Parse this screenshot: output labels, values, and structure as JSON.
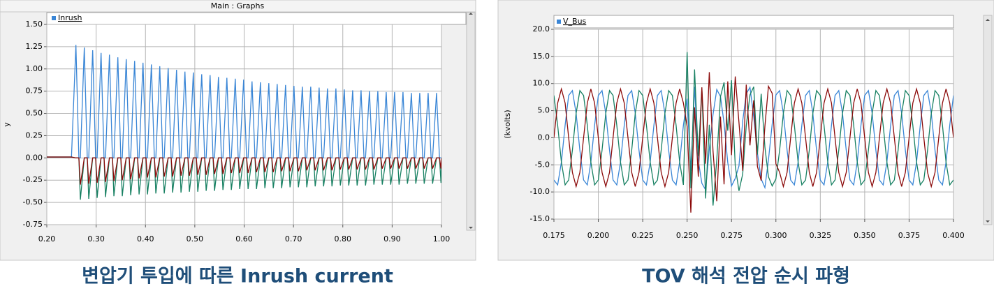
{
  "window_title": "Main : Graphs",
  "chart_data": [
    {
      "type": "line",
      "caption": "변압기 투입에 따른 Inrush current",
      "legend_label": "Inrush",
      "ylabel": "y",
      "grid": true,
      "xlim": [
        0.2,
        1.0
      ],
      "ylim": [
        -0.75,
        1.5
      ],
      "xticks": [
        {
          "value": 0.2,
          "label": "0.20"
        },
        {
          "value": 0.3,
          "label": "0.30"
        },
        {
          "value": 0.4,
          "label": "0.40"
        },
        {
          "value": 0.5,
          "label": "0.50"
        },
        {
          "value": 0.6,
          "label": "0.60"
        },
        {
          "value": 0.7,
          "label": "0.70"
        },
        {
          "value": 0.8,
          "label": "0.80"
        },
        {
          "value": 0.9,
          "label": "0.90"
        },
        {
          "value": 1.0,
          "label": "1.00"
        }
      ],
      "yticks": [
        -0.75,
        {
          "value": -0.5,
          "label": "-0.50"
        },
        -0.25,
        {
          "value": 0,
          "label": "0.00"
        },
        0.25,
        {
          "value": 0.5,
          "label": "0.50"
        },
        0.75,
        {
          "value": 1.0,
          "label": "1.00"
        },
        1.25,
        {
          "value": 1.5,
          "label": "1.50"
        }
      ],
      "x": [
        0.2,
        0.25,
        0.259,
        0.265,
        0.268,
        0.276,
        0.282,
        0.285,
        0.293,
        0.299,
        0.302,
        0.31,
        0.316,
        0.319,
        0.327,
        0.333,
        0.336,
        0.344,
        0.35,
        0.353,
        0.361,
        0.367,
        0.37,
        0.378,
        0.384,
        0.387,
        0.395,
        0.401,
        0.404,
        0.412,
        0.418,
        0.421,
        0.429,
        0.435,
        0.438,
        0.446,
        0.452,
        0.455,
        0.463,
        0.469,
        0.472,
        0.48,
        0.486,
        0.489,
        0.497,
        0.503,
        0.506,
        0.514,
        0.52,
        0.523,
        0.531,
        0.537,
        0.54,
        0.548,
        0.554,
        0.557,
        0.565,
        0.571,
        0.574,
        0.582,
        0.588,
        0.591,
        0.599,
        0.605,
        0.608,
        0.616,
        0.622,
        0.625,
        0.633,
        0.639,
        0.642,
        0.65,
        0.656,
        0.659,
        0.667,
        0.673,
        0.676,
        0.684,
        0.69,
        0.693,
        0.701,
        0.707,
        0.71,
        0.718,
        0.724,
        0.727,
        0.735,
        0.741,
        0.744,
        0.752,
        0.758,
        0.761,
        0.769,
        0.775,
        0.778,
        0.786,
        0.792,
        0.795,
        0.803,
        0.809,
        0.812,
        0.82,
        0.826,
        0.829,
        0.837,
        0.843,
        0.846,
        0.854,
        0.86,
        0.863,
        0.871,
        0.877,
        0.88,
        0.888,
        0.894,
        0.897,
        0.905,
        0.911,
        0.914,
        0.922,
        0.928,
        0.931,
        0.939,
        0.945,
        0.948,
        0.956,
        0.962,
        0.965,
        0.973,
        0.979,
        0.982,
        0.99,
        0.996,
        0.999,
        1.0
      ],
      "series": [
        {
          "color": "#3a86d6",
          "values": [
            0.01,
            0.01,
            1.27,
            0,
            0,
            1.24,
            0,
            0,
            1.21,
            0,
            0,
            1.18,
            0,
            0,
            1.16,
            0,
            0,
            1.13,
            0,
            0,
            1.11,
            0,
            0,
            1.09,
            0,
            0,
            1.07,
            0,
            0,
            1.05,
            0,
            0,
            1.03,
            0,
            0,
            1.01,
            0,
            0,
            0.99,
            0,
            0,
            0.97,
            0,
            0,
            0.96,
            0,
            0,
            0.94,
            0,
            0,
            0.93,
            0,
            0,
            0.91,
            0,
            0,
            0.9,
            0,
            0,
            0.89,
            0,
            0,
            0.88,
            0,
            0,
            0.86,
            0,
            0,
            0.85,
            0,
            0,
            0.84,
            0,
            0,
            0.83,
            0,
            0,
            0.82,
            0,
            0,
            0.81,
            0,
            0,
            0.8,
            0,
            0,
            0.8,
            0,
            0,
            0.79,
            0,
            0,
            0.78,
            0,
            0,
            0.78,
            0,
            0,
            0.77,
            0,
            0,
            0.76,
            0,
            0,
            0.76,
            0,
            0,
            0.75,
            0,
            0,
            0.75,
            0,
            0,
            0.74,
            0,
            0,
            0.74,
            0,
            0,
            0.74,
            0,
            0,
            0.73,
            0,
            0,
            0.73,
            0,
            0,
            0.73,
            0,
            0,
            0.73,
            0,
            0,
            0
          ]
        },
        {
          "color": "#178062",
          "values": [
            0.01,
            0.01,
            0,
            0,
            -0.47,
            0,
            0,
            -0.46,
            0,
            0,
            -0.45,
            0,
            0,
            -0.44,
            0,
            0,
            -0.43,
            0,
            0,
            -0.43,
            0,
            0,
            -0.42,
            0,
            0,
            -0.41,
            0,
            0,
            -0.41,
            0,
            0,
            -0.4,
            0,
            0,
            -0.4,
            0,
            0,
            -0.39,
            0,
            0,
            -0.39,
            0,
            0,
            -0.38,
            0,
            0,
            -0.38,
            0,
            0,
            -0.37,
            0,
            0,
            -0.37,
            0,
            0,
            -0.36,
            0,
            0,
            -0.36,
            0,
            0,
            -0.35,
            0,
            0,
            -0.35,
            0,
            0,
            -0.35,
            0,
            0,
            -0.34,
            0,
            0,
            -0.34,
            0,
            0,
            -0.34,
            0,
            0,
            -0.33,
            0,
            0,
            -0.33,
            0,
            0,
            -0.33,
            0,
            0,
            -0.32,
            0,
            0,
            -0.32,
            0,
            0,
            -0.32,
            0,
            0,
            -0.31,
            0,
            0,
            -0.31,
            0,
            0,
            -0.31,
            0,
            0,
            -0.31,
            0,
            0,
            -0.3,
            0,
            0,
            -0.3,
            0,
            0,
            -0.3,
            0,
            0,
            -0.3,
            0,
            0,
            -0.29,
            0,
            0,
            -0.29,
            0,
            0,
            -0.29,
            0,
            0,
            -0.29,
            0,
            0,
            -0.28,
            0
          ]
        },
        {
          "color": "#8b0a0a",
          "values": [
            0.01,
            0.01,
            0,
            0,
            -0.3,
            0,
            0,
            -0.29,
            0,
            0,
            -0.28,
            0,
            0,
            -0.27,
            0,
            0,
            -0.26,
            0,
            0,
            -0.25,
            0,
            0,
            -0.24,
            0,
            0,
            -0.23,
            0,
            0,
            -0.22,
            0,
            0,
            -0.22,
            0,
            0,
            -0.21,
            0,
            0,
            -0.21,
            0,
            0,
            -0.2,
            0,
            0,
            -0.2,
            0,
            0,
            -0.19,
            0,
            0,
            -0.19,
            0,
            0,
            -0.18,
            0,
            0,
            -0.18,
            0,
            0,
            -0.17,
            0,
            0,
            -0.17,
            0,
            0,
            -0.17,
            0,
            0,
            -0.16,
            0,
            0,
            -0.16,
            0,
            0,
            -0.16,
            0,
            0,
            -0.15,
            0,
            0,
            -0.15,
            0,
            0,
            -0.15,
            0,
            0,
            -0.14,
            0,
            0,
            -0.14,
            0,
            0,
            -0.14,
            0,
            0,
            -0.14,
            0,
            0,
            -0.13,
            0,
            0,
            -0.13,
            0,
            0,
            -0.13,
            0,
            0,
            -0.13,
            0,
            0,
            -0.13,
            0,
            0,
            -0.12,
            0,
            0,
            -0.12,
            0,
            0,
            -0.12,
            0,
            0,
            -0.12,
            0,
            0,
            -0.12,
            0,
            0,
            -0.12,
            0,
            0,
            -0.12,
            0,
            0,
            -0.12,
            0
          ]
        }
      ]
    },
    {
      "type": "line",
      "caption": "TOV 해석 전압 순시 파형",
      "legend_label": "V_Bus",
      "ylabel": "(kvolts)",
      "grid": true,
      "xlim": [
        0.175,
        0.4
      ],
      "ylim": [
        -15,
        20
      ],
      "xticks": [
        0.175,
        {
          "value": 0.2,
          "label": "0.200"
        },
        0.225,
        {
          "value": 0.25,
          "label": "0.250"
        },
        0.275,
        {
          "value": 0.3,
          "label": "0.300"
        },
        0.325,
        {
          "value": 0.35,
          "label": "0.350"
        },
        0.375,
        {
          "value": 0.4,
          "label": "0.400"
        }
      ],
      "yticks": [
        {
          "value": -15,
          "label": "-15.0"
        },
        {
          "value": -10,
          "label": "-10.0"
        },
        {
          "value": -5,
          "label": "-5.0"
        },
        {
          "value": 0,
          "label": "0.0"
        },
        {
          "value": 5,
          "label": "5.0"
        },
        {
          "value": 10,
          "label": "10.0"
        },
        {
          "value": 15,
          "label": "15.0"
        },
        {
          "value": 20,
          "label": "20.0"
        }
      ],
      "x": [
        0.175,
        0.1771,
        0.1792,
        0.1813,
        0.1833,
        0.1854,
        0.1875,
        0.1896,
        0.1917,
        0.1938,
        0.1958,
        0.1979,
        0.2,
        0.2021,
        0.2042,
        0.2063,
        0.2083,
        0.2104,
        0.2125,
        0.2146,
        0.2167,
        0.2188,
        0.2208,
        0.2229,
        0.225,
        0.2271,
        0.2292,
        0.2313,
        0.2333,
        0.2354,
        0.2375,
        0.2396,
        0.2417,
        0.2438,
        0.2458,
        0.2479,
        0.25,
        0.2521,
        0.2542,
        0.2563,
        0.2583,
        0.2604,
        0.2625,
        0.2646,
        0.2667,
        0.2688,
        0.2708,
        0.2729,
        0.275,
        0.2771,
        0.2792,
        0.2813,
        0.2833,
        0.2854,
        0.2875,
        0.2896,
        0.2917,
        0.2938,
        0.2958,
        0.2979,
        0.3,
        0.3021,
        0.3042,
        0.3063,
        0.3083,
        0.3104,
        0.3125,
        0.3146,
        0.3167,
        0.3188,
        0.3208,
        0.3229,
        0.325,
        0.3271,
        0.3292,
        0.3313,
        0.3333,
        0.3354,
        0.3375,
        0.3396,
        0.3417,
        0.3438,
        0.3458,
        0.3479,
        0.35,
        0.3521,
        0.3542,
        0.3563,
        0.3583,
        0.3604,
        0.3625,
        0.3646,
        0.3667,
        0.3688,
        0.3708,
        0.3729,
        0.375,
        0.3771,
        0.3792,
        0.3813,
        0.3833,
        0.3854,
        0.3875,
        0.3896,
        0.3917,
        0.3938,
        0.3958,
        0.3979,
        0.4
      ],
      "series": [
        {
          "color": "#3a86d6",
          "values": [
            -7.8,
            -8.7,
            -4.5,
            2.3,
            7.8,
            8.7,
            4.5,
            -2.3,
            -7.8,
            -8.7,
            -4.5,
            2.3,
            7.8,
            8.7,
            4.5,
            -2.3,
            -7.8,
            -8.7,
            -4.5,
            2.3,
            7.8,
            8.7,
            4.5,
            -2.3,
            -7.8,
            -8.7,
            -4.5,
            2.3,
            7.8,
            8.7,
            4.5,
            -2.3,
            -7.8,
            -8.7,
            -4.5,
            2.3,
            7.2,
            -6.1,
            9.4,
            -4.2,
            -8.4,
            -9.6,
            -2.1,
            4.3,
            8.9,
            7.6,
            2.7,
            -4.6,
            -8.9,
            -7.5,
            -5.2,
            3.1,
            8.1,
            9.3,
            3.9,
            -2.8,
            -7.6,
            -9.2,
            -4.1,
            2.5,
            7.9,
            8.7,
            4.5,
            -2.3,
            -7.8,
            -8.7,
            -4.5,
            2.3,
            7.8,
            8.7,
            4.5,
            -2.3,
            -7.8,
            -8.7,
            -4.5,
            2.3,
            7.8,
            8.7,
            4.5,
            -2.3,
            -7.8,
            -8.7,
            -4.5,
            2.3,
            7.8,
            8.7,
            4.5,
            -2.3,
            -7.8,
            -8.7,
            -4.5,
            2.3,
            7.8,
            8.7,
            4.5,
            -2.3,
            -7.8,
            -8.7,
            -4.5,
            2.3,
            7.8,
            8.7,
            4.5,
            -2.3,
            -7.8,
            -8.7,
            -4.5,
            2.3,
            7.8
          ]
        },
        {
          "color": "#178062",
          "values": [
            7.8,
            2.3,
            -4.5,
            -8.7,
            -7.8,
            -2.3,
            4.5,
            8.7,
            7.8,
            2.3,
            -4.5,
            -8.7,
            -7.8,
            -2.3,
            4.5,
            8.7,
            7.8,
            2.3,
            -4.5,
            -8.7,
            -7.8,
            -2.3,
            4.5,
            8.7,
            7.8,
            2.3,
            -4.5,
            -8.7,
            -7.8,
            -2.3,
            4.5,
            8.7,
            7.8,
            2.3,
            -4.5,
            -8.7,
            15.8,
            -9.3,
            12.6,
            -3.4,
            9.1,
            -11.2,
            2.4,
            -12.5,
            -4.1,
            7.6,
            10.2,
            1.3,
            10.6,
            -5.2,
            -9.8,
            -6.7,
            2.2,
            7.9,
            9.4,
            -3.1,
            8.1,
            -1.7,
            -7.2,
            -8.9,
            -7.6,
            -2.3,
            4.5,
            8.7,
            7.8,
            2.3,
            -4.5,
            -8.7,
            -7.8,
            -2.3,
            4.5,
            8.7,
            7.8,
            2.3,
            -4.5,
            -8.7,
            -7.8,
            -2.3,
            4.5,
            8.7,
            7.8,
            2.3,
            -4.5,
            -8.7,
            -7.8,
            -2.3,
            4.5,
            8.7,
            7.8,
            2.3,
            -4.5,
            -8.7,
            -7.8,
            -2.3,
            4.5,
            8.7,
            7.8,
            2.3,
            -4.5,
            -8.7,
            -7.8,
            -2.3,
            4.5,
            8.7,
            7.8,
            2.3,
            -4.5,
            -8.7,
            -7.8
          ]
        },
        {
          "color": "#8b0a0a",
          "values": [
            0,
            6.4,
            9,
            6.4,
            0,
            -6.4,
            -9,
            -6.4,
            0,
            6.4,
            9,
            6.4,
            0,
            -6.4,
            -9,
            -6.4,
            0,
            6.4,
            9,
            6.4,
            0,
            -6.4,
            -9,
            -6.4,
            0,
            6.4,
            9,
            6.4,
            0,
            -6.4,
            -9,
            -6.4,
            0,
            6.4,
            9,
            6.4,
            2.1,
            -13.8,
            5.6,
            -7.2,
            9.3,
            -4.8,
            12.1,
            -2.5,
            -11.7,
            3.9,
            -8.6,
            10.4,
            -3.2,
            11.3,
            2.8,
            -6.1,
            9.8,
            -1.4,
            6.9,
            -5.3,
            -7.9,
            2.1,
            9.5,
            8.2,
            -4.8,
            -6.4,
            -9,
            -6.4,
            0,
            6.4,
            9,
            6.4,
            0,
            -6.4,
            -9,
            -6.4,
            0,
            6.4,
            9,
            6.4,
            0,
            -6.4,
            -9,
            -6.4,
            0,
            6.4,
            9,
            6.4,
            0,
            -6.4,
            -9,
            -6.4,
            0,
            6.4,
            9,
            6.4,
            0,
            -6.4,
            -9,
            -6.4,
            0,
            6.4,
            9,
            6.4,
            0,
            -6.4,
            -9,
            -6.4,
            0,
            6.4,
            9,
            6.4,
            0
          ]
        }
      ]
    }
  ]
}
